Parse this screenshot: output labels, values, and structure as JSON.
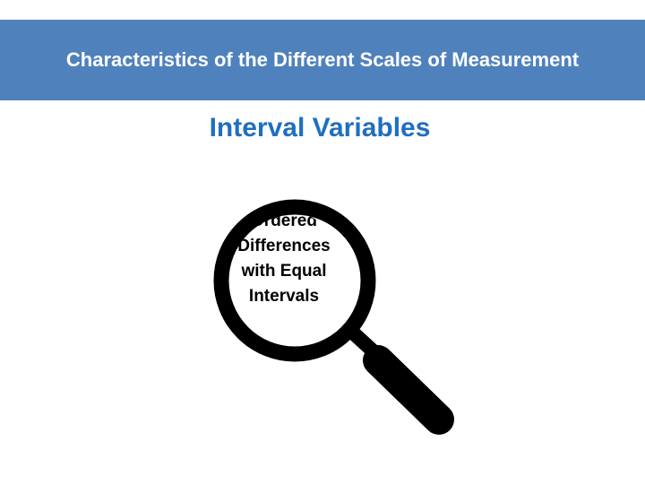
{
  "header": {
    "title": "Characteristics of the Different Scales of Measurement",
    "background_color": "#4f81bd"
  },
  "subtitle": {
    "text": "Interval Variables",
    "color": "#1f6fbf"
  },
  "magnifier": {
    "icon": "magnifying-glass-icon",
    "lens_text": [
      "Ordered",
      "Differences",
      "with Equal",
      "Intervals"
    ]
  }
}
